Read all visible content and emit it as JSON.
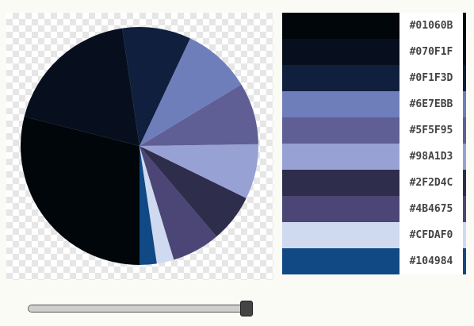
{
  "chart_data": {
    "type": "pie",
    "slices": [
      {
        "color": "#104984",
        "value": 2.5
      },
      {
        "color": "#CFDAF0",
        "value": 2.5
      },
      {
        "color": "#4B4675",
        "value": 7
      },
      {
        "color": "#2F2D4C",
        "value": 7
      },
      {
        "color": "#98A1D3",
        "value": 8
      },
      {
        "color": "#5F5F95",
        "value": 9
      },
      {
        "color": "#6E7EBB",
        "value": 10
      },
      {
        "color": "#0F1F3D",
        "value": 10
      },
      {
        "color": "#070F1F",
        "value": 20
      },
      {
        "color": "#01060B",
        "value": 31
      }
    ]
  },
  "palette": [
    {
      "hex": "#01060B",
      "color": "#01060B"
    },
    {
      "hex": "#070F1F",
      "color": "#070F1F"
    },
    {
      "hex": "#0F1F3D",
      "color": "#0F1F3D"
    },
    {
      "hex": "#6E7EBB",
      "color": "#6E7EBB"
    },
    {
      "hex": "#5F5F95",
      "color": "#5F5F95"
    },
    {
      "hex": "#98A1D3",
      "color": "#98A1D3"
    },
    {
      "hex": "#2F2D4C",
      "color": "#2F2D4C"
    },
    {
      "hex": "#4B4675",
      "color": "#4B4675"
    },
    {
      "hex": "#CFDAF0",
      "color": "#CFDAF0"
    },
    {
      "hex": "#104984",
      "color": "#104984"
    }
  ],
  "slider": {
    "value": 1.0
  }
}
